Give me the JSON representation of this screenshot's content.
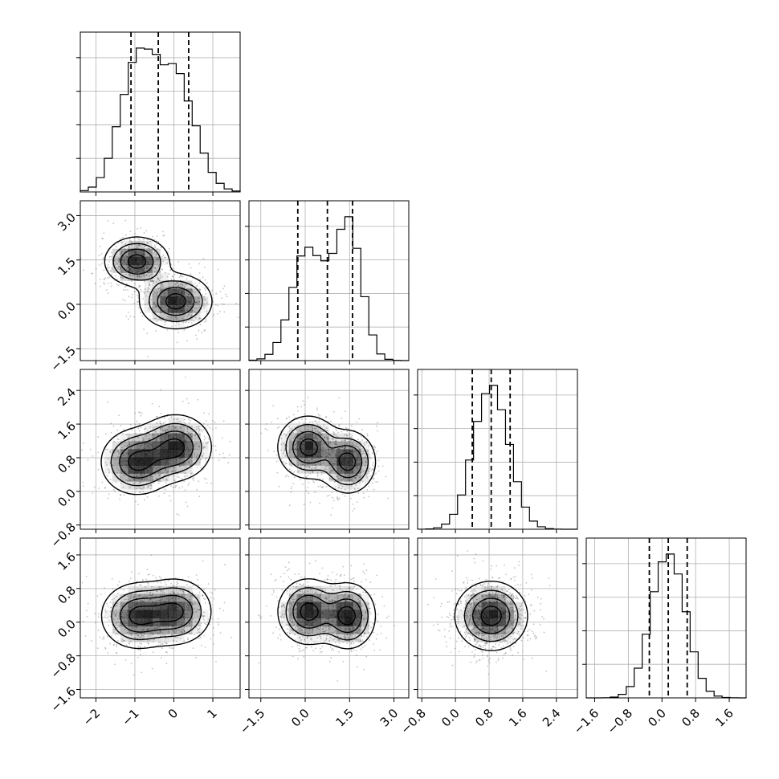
{
  "chart_data": {
    "type": "corner",
    "n_params": 4,
    "colors": {
      "line": "#000000",
      "grid": "#b0b0b0",
      "density": "#000000",
      "scatter": "#555555"
    },
    "grid": true,
    "parameters": [
      {
        "index": 0,
        "range": [
          -2.4,
          1.7
        ],
        "ticks": [
          -2,
          -1,
          0,
          1
        ],
        "tick_labels": [
          "−2",
          "−1",
          "0",
          "1"
        ],
        "quantiles": [
          -1.1,
          -0.4,
          0.38
        ],
        "modes": [
          {
            "mean": -0.95,
            "sd": 0.45,
            "weight": 0.5
          },
          {
            "mean": 0.05,
            "sd": 0.5,
            "weight": 0.5
          }
        ]
      },
      {
        "index": 1,
        "range": [
          -1.9,
          3.5
        ],
        "ticks": [
          -1.5,
          0.0,
          1.5,
          3.0
        ],
        "tick_labels": [
          "−1.5",
          "0.0",
          "1.5",
          "3.0"
        ],
        "quantiles": [
          -0.25,
          0.75,
          1.6
        ],
        "modes": [
          {
            "mean": 0.1,
            "sd": 0.55,
            "weight": 0.5
          },
          {
            "mean": 1.45,
            "sd": 0.45,
            "weight": 0.5
          }
        ]
      },
      {
        "index": 2,
        "range": [
          -0.9,
          2.9
        ],
        "ticks": [
          -0.8,
          0.0,
          0.8,
          1.6,
          2.4
        ],
        "tick_labels": [
          "−0.8",
          "0.0",
          "0.8",
          "1.6",
          "2.4"
        ],
        "quantiles": [
          0.4,
          0.85,
          1.3
        ],
        "modes": [
          {
            "mean": 0.85,
            "sd": 0.42,
            "weight": 1.0
          }
        ]
      },
      {
        "index": 3,
        "range": [
          -1.8,
          2.0
        ],
        "ticks": [
          -1.6,
          -0.8,
          0.0,
          0.8,
          1.6
        ],
        "tick_labels": [
          "−1.6",
          "−0.8",
          "0.0",
          "0.8",
          "1.6"
        ],
        "quantiles": [
          -0.3,
          0.15,
          0.6
        ],
        "modes": [
          {
            "mean": 0.15,
            "sd": 0.4,
            "weight": 1.0
          }
        ]
      }
    ],
    "pairs": [
      {
        "row": 1,
        "col": 0,
        "peaks": [
          {
            "x": -0.95,
            "y": 1.45,
            "sx": 0.4,
            "sy": 0.4,
            "w": 0.5
          },
          {
            "x": 0.05,
            "y": 0.1,
            "sx": 0.45,
            "sy": 0.45,
            "w": 0.5
          }
        ]
      },
      {
        "row": 2,
        "col": 0,
        "peaks": [
          {
            "x": -0.95,
            "y": 0.7,
            "sx": 0.45,
            "sy": 0.38,
            "w": 0.5
          },
          {
            "x": 0.05,
            "y": 1.05,
            "sx": 0.45,
            "sy": 0.38,
            "w": 0.5
          }
        ]
      },
      {
        "row": 2,
        "col": 1,
        "peaks": [
          {
            "x": 0.1,
            "y": 1.05,
            "sx": 0.5,
            "sy": 0.36,
            "w": 0.5
          },
          {
            "x": 1.45,
            "y": 0.7,
            "sx": 0.45,
            "sy": 0.36,
            "w": 0.5
          }
        ]
      },
      {
        "row": 3,
        "col": 0,
        "peaks": [
          {
            "x": -0.95,
            "y": 0.15,
            "sx": 0.45,
            "sy": 0.38,
            "w": 0.5
          },
          {
            "x": 0.05,
            "y": 0.25,
            "sx": 0.45,
            "sy": 0.38,
            "w": 0.5
          }
        ]
      },
      {
        "row": 3,
        "col": 1,
        "peaks": [
          {
            "x": 0.1,
            "y": 0.25,
            "sx": 0.5,
            "sy": 0.38,
            "w": 0.5
          },
          {
            "x": 1.45,
            "y": 0.15,
            "sx": 0.45,
            "sy": 0.38,
            "w": 0.5
          }
        ]
      },
      {
        "row": 3,
        "col": 2,
        "peaks": [
          {
            "x": 0.85,
            "y": 0.15,
            "sx": 0.42,
            "sy": 0.4,
            "w": 1.0
          }
        ]
      }
    ]
  }
}
